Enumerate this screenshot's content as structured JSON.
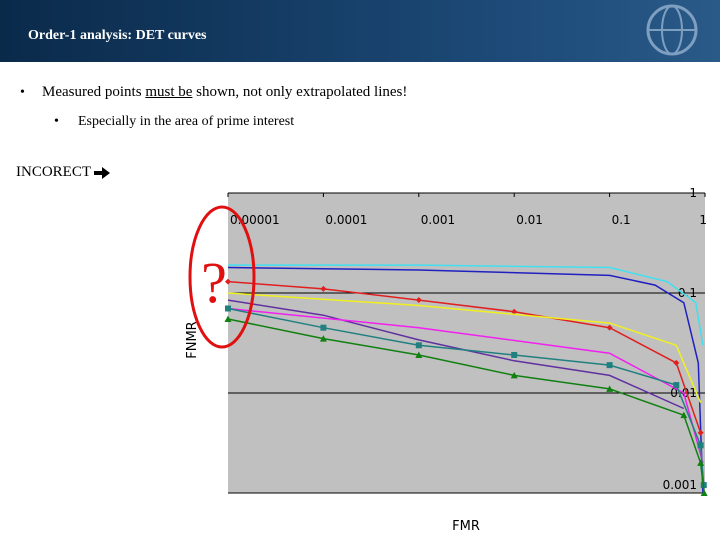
{
  "header": {
    "title": "Order-1 analysis: DET curves"
  },
  "bullets": [
    {
      "parts": [
        "Measured points ",
        "must be",
        " shown, not only extrapolated lines!"
      ]
    },
    {
      "parts": [
        "Especially in the area of prime interest"
      ]
    }
  ],
  "label": "INCORECT",
  "chart_data": {
    "type": "line",
    "annotation": "?",
    "xlabel": "FMR",
    "ylabel": "FNMR",
    "xscale": "log",
    "yscale": "log",
    "grid": "y",
    "xlim": [
      1e-05,
      1
    ],
    "ylim": [
      0.001,
      1
    ],
    "xticks": [
      1e-05,
      0.0001,
      0.001,
      0.01,
      0.1,
      1
    ],
    "yticks": [
      0.001,
      0.01,
      0.1,
      1
    ],
    "series": [
      {
        "color": "#40e0f0",
        "marker": "none",
        "x": [
          1e-05,
          0.001,
          0.1,
          0.4,
          0.8,
          0.95
        ],
        "values": [
          0.19,
          0.19,
          0.18,
          0.13,
          0.08,
          0.03
        ]
      },
      {
        "color": "#2020c0",
        "marker": "none",
        "x": [
          1e-05,
          0.001,
          0.1,
          0.3,
          0.6,
          0.85,
          0.95
        ],
        "values": [
          0.18,
          0.17,
          0.15,
          0.12,
          0.08,
          0.02,
          0.001
        ]
      },
      {
        "color": "#e02020",
        "marker": "diamond",
        "x": [
          1e-05,
          0.0001,
          0.001,
          0.01,
          0.1,
          0.5,
          0.9
        ],
        "values": [
          0.13,
          0.11,
          0.085,
          0.065,
          0.045,
          0.02,
          0.004
        ]
      },
      {
        "color": "#f0f020",
        "marker": "none",
        "x": [
          1e-05,
          0.001,
          0.1,
          0.5,
          0.9
        ],
        "values": [
          0.1,
          0.075,
          0.05,
          0.03,
          0.008
        ]
      },
      {
        "color": "#6030a0",
        "marker": "none",
        "x": [
          1e-05,
          0.0001,
          0.001,
          0.01,
          0.1,
          0.6
        ],
        "values": [
          0.085,
          0.06,
          0.034,
          0.021,
          0.015,
          0.007
        ]
      },
      {
        "color": "#f020f0",
        "marker": "none",
        "x": [
          1e-05,
          0.001,
          0.1,
          0.6,
          0.95
        ],
        "values": [
          0.07,
          0.045,
          0.025,
          0.01,
          0.002
        ]
      },
      {
        "color": "#208080",
        "marker": "square",
        "x": [
          1e-05,
          0.0001,
          0.001,
          0.01,
          0.1,
          0.5,
          0.9,
          0.97
        ],
        "values": [
          0.07,
          0.045,
          0.03,
          0.024,
          0.019,
          0.012,
          0.003,
          0.0012
        ]
      },
      {
        "color": "#108010",
        "marker": "triangle",
        "x": [
          1e-05,
          0.0001,
          0.001,
          0.01,
          0.1,
          0.6,
          0.9,
          0.98
        ],
        "values": [
          0.055,
          0.035,
          0.024,
          0.015,
          0.011,
          0.006,
          0.002,
          0.001
        ]
      }
    ]
  }
}
